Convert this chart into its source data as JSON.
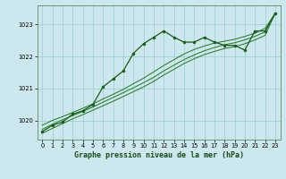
{
  "title": "Graphe pression niveau de la mer (hPa)",
  "bg_color": "#cce8ee",
  "plot_bg_color": "#cce8ee",
  "grid_color": "#99cccc",
  "line_color_main": "#1a5c1a",
  "line_color_smooth": "#2d7a2d",
  "xlim": [
    -0.5,
    23.5
  ],
  "ylim": [
    1019.4,
    1023.6
  ],
  "yticks": [
    1020,
    1021,
    1022,
    1023
  ],
  "xticks": [
    0,
    1,
    2,
    3,
    4,
    5,
    6,
    7,
    8,
    9,
    10,
    11,
    12,
    13,
    14,
    15,
    16,
    17,
    18,
    19,
    20,
    21,
    22,
    23
  ],
  "hours": [
    0,
    1,
    2,
    3,
    4,
    5,
    6,
    7,
    8,
    9,
    10,
    11,
    12,
    13,
    14,
    15,
    16,
    17,
    18,
    19,
    20,
    21,
    22,
    23
  ],
  "main_values": [
    1019.65,
    1019.85,
    1019.95,
    1020.2,
    1020.3,
    1020.5,
    1021.05,
    1021.3,
    1021.55,
    1022.1,
    1022.4,
    1022.6,
    1022.8,
    1022.6,
    1022.45,
    1022.45,
    1022.6,
    1022.45,
    1022.35,
    1022.35,
    1022.2,
    1022.8,
    1022.8,
    1023.35
  ],
  "smooth1": [
    1019.85,
    1020.0,
    1020.12,
    1020.25,
    1020.38,
    1020.52,
    1020.67,
    1020.82,
    1020.97,
    1021.15,
    1021.32,
    1021.52,
    1021.72,
    1021.9,
    1022.08,
    1022.22,
    1022.33,
    1022.42,
    1022.48,
    1022.54,
    1022.63,
    1022.73,
    1022.88,
    1023.35
  ],
  "smooth2": [
    1019.72,
    1019.88,
    1020.02,
    1020.15,
    1020.28,
    1020.42,
    1020.57,
    1020.72,
    1020.87,
    1021.02,
    1021.18,
    1021.35,
    1021.55,
    1021.73,
    1021.9,
    1022.05,
    1022.18,
    1022.28,
    1022.37,
    1022.43,
    1022.52,
    1022.63,
    1022.77,
    1023.35
  ],
  "smooth3": [
    1019.6,
    1019.75,
    1019.9,
    1020.05,
    1020.18,
    1020.32,
    1020.46,
    1020.6,
    1020.75,
    1020.9,
    1021.05,
    1021.22,
    1021.42,
    1021.6,
    1021.78,
    1021.93,
    1022.06,
    1022.16,
    1022.25,
    1022.31,
    1022.4,
    1022.52,
    1022.66,
    1023.35
  ],
  "ylabel_fontsize": 5.5,
  "xlabel_fontsize": 5.5,
  "tick_fontsize": 4.8,
  "title_fontsize": 6.0
}
